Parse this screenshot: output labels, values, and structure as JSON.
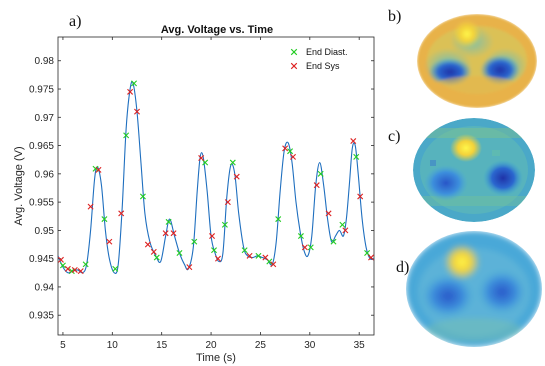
{
  "panel_labels": {
    "a": "a)",
    "b": "b)",
    "c": "c)",
    "d": "d)"
  },
  "chart_data": {
    "type": "line",
    "title": "Avg. Voltage vs. Time",
    "xlabel": "Time (s)",
    "ylabel": "Avg. Voltage (V)",
    "xlim": [
      4.5,
      36.5
    ],
    "ylim": [
      0.9315,
      0.9842
    ],
    "x_ticks": [
      5,
      10,
      15,
      20,
      25,
      30,
      35
    ],
    "y_ticks": [
      0.935,
      0.94,
      0.945,
      0.95,
      0.955,
      0.96,
      0.965,
      0.97,
      0.975,
      0.98
    ],
    "x_tick_labels": [
      "5",
      "10",
      "15",
      "20",
      "25",
      "30",
      "35"
    ],
    "y_tick_labels": [
      "0.935",
      "0.94",
      "0.945",
      "0.95",
      "0.955",
      "0.96",
      "0.965",
      "0.97",
      "0.975",
      "0.98"
    ],
    "grid": false,
    "legend_position": "top-right",
    "colors": {
      "line": "#1f6fbf",
      "diast": "#22cc22",
      "sys": "#dd2222"
    },
    "series": [
      {
        "kind": "line",
        "values": [
          [
            4.5,
            0.9455
          ],
          [
            5.0,
            0.9435
          ],
          [
            5.5,
            0.9425
          ],
          [
            6.0,
            0.9428
          ],
          [
            6.5,
            0.943
          ],
          [
            7.0,
            0.9425
          ],
          [
            7.4,
            0.944
          ],
          [
            7.8,
            0.95
          ],
          [
            8.2,
            0.959
          ],
          [
            8.5,
            0.9612
          ],
          [
            8.9,
            0.958
          ],
          [
            9.3,
            0.95
          ],
          [
            9.7,
            0.945
          ],
          [
            10.2,
            0.9425
          ],
          [
            10.6,
            0.944
          ],
          [
            11.0,
            0.954
          ],
          [
            11.4,
            0.968
          ],
          [
            11.8,
            0.975
          ],
          [
            12.1,
            0.976
          ],
          [
            12.5,
            0.971
          ],
          [
            12.9,
            0.962
          ],
          [
            13.3,
            0.953
          ],
          [
            13.8,
            0.948
          ],
          [
            14.4,
            0.9455
          ],
          [
            14.9,
            0.9445
          ],
          [
            15.4,
            0.949
          ],
          [
            15.8,
            0.952
          ],
          [
            16.3,
            0.949
          ],
          [
            16.8,
            0.946
          ],
          [
            17.3,
            0.944
          ],
          [
            17.7,
            0.9432
          ],
          [
            18.2,
            0.947
          ],
          [
            18.6,
            0.957
          ],
          [
            18.9,
            0.963
          ],
          [
            19.2,
            0.963
          ],
          [
            19.6,
            0.957
          ],
          [
            20.0,
            0.949
          ],
          [
            20.4,
            0.946
          ],
          [
            20.8,
            0.9445
          ],
          [
            21.2,
            0.946
          ],
          [
            21.6,
            0.956
          ],
          [
            22.0,
            0.9615
          ],
          [
            22.4,
            0.96
          ],
          [
            22.8,
            0.953
          ],
          [
            23.3,
            0.947
          ],
          [
            23.7,
            0.9455
          ],
          [
            24.2,
            0.9452
          ],
          [
            24.7,
            0.9455
          ],
          [
            25.2,
            0.9452
          ],
          [
            25.7,
            0.9448
          ],
          [
            26.2,
            0.944
          ],
          [
            26.6,
            0.948
          ],
          [
            27.0,
            0.957
          ],
          [
            27.4,
            0.964
          ],
          [
            27.8,
            0.9655
          ],
          [
            28.2,
            0.962
          ],
          [
            28.6,
            0.955
          ],
          [
            29.0,
            0.95
          ],
          [
            29.4,
            0.9465
          ],
          [
            29.8,
            0.9455
          ],
          [
            30.2,
            0.949
          ],
          [
            30.6,
            0.958
          ],
          [
            31.0,
            0.962
          ],
          [
            31.4,
            0.958
          ],
          [
            31.8,
            0.952
          ],
          [
            32.2,
            0.948
          ],
          [
            32.6,
            0.949
          ],
          [
            33.0,
            0.95
          ],
          [
            33.4,
            0.949
          ],
          [
            33.7,
            0.952
          ],
          [
            34.0,
            0.958
          ],
          [
            34.3,
            0.9645
          ],
          [
            34.6,
            0.965
          ],
          [
            34.9,
            0.96
          ],
          [
            35.3,
            0.952
          ],
          [
            35.7,
            0.947
          ],
          [
            36.1,
            0.945
          ],
          [
            36.5,
            0.945
          ]
        ]
      },
      {
        "kind": "markers",
        "name": "End Diast.",
        "marker": "x",
        "values": [
          [
            5.0,
            0.9438
          ],
          [
            5.9,
            0.9428
          ],
          [
            7.3,
            0.944
          ],
          [
            8.3,
            0.9609
          ],
          [
            9.2,
            0.952
          ],
          [
            10.3,
            0.9432
          ],
          [
            11.4,
            0.9668
          ],
          [
            12.2,
            0.976
          ],
          [
            13.1,
            0.956
          ],
          [
            14.5,
            0.9452
          ],
          [
            15.7,
            0.9515
          ],
          [
            16.8,
            0.946
          ],
          [
            18.3,
            0.948
          ],
          [
            19.4,
            0.962
          ],
          [
            20.3,
            0.9465
          ],
          [
            21.4,
            0.951
          ],
          [
            22.2,
            0.962
          ],
          [
            23.4,
            0.9465
          ],
          [
            24.8,
            0.9455
          ],
          [
            25.9,
            0.9445
          ],
          [
            26.8,
            0.952
          ],
          [
            28.0,
            0.964
          ],
          [
            29.1,
            0.949
          ],
          [
            30.1,
            0.947
          ],
          [
            31.1,
            0.96
          ],
          [
            32.4,
            0.948
          ],
          [
            33.3,
            0.951
          ],
          [
            34.7,
            0.963
          ],
          [
            35.8,
            0.946
          ]
        ]
      },
      {
        "kind": "markers",
        "name": "End Sys",
        "marker": "x",
        "values": [
          [
            4.8,
            0.9448
          ],
          [
            5.5,
            0.9432
          ],
          [
            6.2,
            0.943
          ],
          [
            6.8,
            0.9428
          ],
          [
            7.8,
            0.9542
          ],
          [
            8.6,
            0.9607
          ],
          [
            9.7,
            0.948
          ],
          [
            10.9,
            0.953
          ],
          [
            11.8,
            0.9745
          ],
          [
            12.5,
            0.971
          ],
          [
            13.6,
            0.9475
          ],
          [
            14.2,
            0.9462
          ],
          [
            15.4,
            0.9495
          ],
          [
            16.2,
            0.9495
          ],
          [
            17.8,
            0.9435
          ],
          [
            19.0,
            0.9628
          ],
          [
            20.1,
            0.949
          ],
          [
            20.7,
            0.945
          ],
          [
            21.7,
            0.955
          ],
          [
            22.6,
            0.9595
          ],
          [
            23.9,
            0.9455
          ],
          [
            25.5,
            0.9452
          ],
          [
            26.3,
            0.944
          ],
          [
            27.5,
            0.9645
          ],
          [
            28.3,
            0.963
          ],
          [
            29.5,
            0.947
          ],
          [
            30.7,
            0.958
          ],
          [
            31.9,
            0.953
          ],
          [
            33.6,
            0.95
          ],
          [
            34.4,
            0.9658
          ],
          [
            35.1,
            0.956
          ],
          [
            36.2,
            0.9452
          ]
        ]
      }
    ]
  },
  "eit_images": [
    {
      "panel": "b",
      "shape": "wide",
      "background": "#e8b24a",
      "lobes": "two-dark-blue-lower",
      "hot_spot": "top-center"
    },
    {
      "panel": "c",
      "shape": "round",
      "background": "#4aa8c8",
      "lobes": "two-dark-blue-middle",
      "hot_spot": "top-center"
    },
    {
      "panel": "d",
      "shape": "blurred",
      "background": "#4aa8d8",
      "lobes": "diffuse-blue",
      "hot_spot": "top-center"
    }
  ]
}
